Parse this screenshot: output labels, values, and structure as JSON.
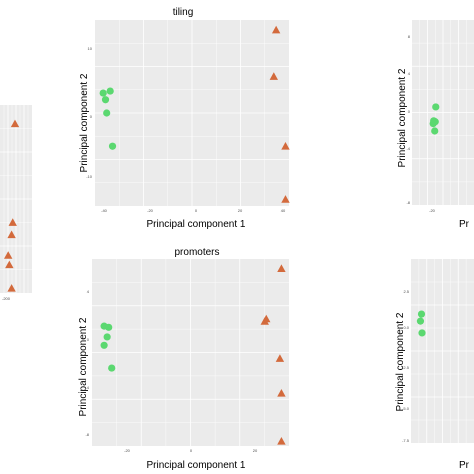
{
  "chart_data": [
    {
      "id": "tiling",
      "type": "scatter",
      "title": "tiling",
      "xlabel": "Principal component 1",
      "ylabel": "Principal component 2",
      "x_ticks": [
        "-40",
        "-20",
        "0",
        "20",
        "40"
      ],
      "y_ticks": [
        "10",
        "0",
        "-10"
      ],
      "xlim": [
        -41.5,
        41.5
      ],
      "ylim": [
        -13.5,
        14.5
      ],
      "grid": true,
      "series": [
        {
          "shape": "circle",
          "color": "#5BD870",
          "points": [
            [
              -38,
              3.5
            ],
            [
              -35,
              3.8
            ],
            [
              -37,
              2.5
            ],
            [
              -36.5,
              0.5
            ],
            [
              -34,
              -4.5
            ]
          ]
        },
        {
          "shape": "triangle",
          "color": "#D36A3C",
          "points": [
            [
              36,
              13
            ],
            [
              35,
              6
            ],
            [
              40,
              -4.5
            ],
            [
              40,
              -12.5
            ]
          ]
        }
      ]
    },
    {
      "id": "promoters",
      "type": "scatter",
      "title": "promoters",
      "xlabel": "Principal component 1",
      "ylabel": "Principal component 2",
      "x_ticks": [
        "-20",
        "0",
        "20"
      ],
      "y_ticks": [
        "4",
        "0",
        "-4",
        "-8"
      ],
      "xlim": [
        -32,
        33
      ],
      "ylim": [
        -8.8,
        6.8
      ],
      "grid": true,
      "series": [
        {
          "shape": "circle",
          "color": "#5BD870",
          "points": [
            [
              -28,
              1.2
            ],
            [
              -26.5,
              1.1
            ],
            [
              -27,
              0.3
            ],
            [
              -28,
              -0.4
            ],
            [
              -25.5,
              -2.3
            ]
          ]
        },
        {
          "shape": "triangle",
          "color": "#D36A3C",
          "points": [
            [
              30.5,
              6
            ],
            [
              25.5,
              1.8
            ],
            [
              25,
              1.6
            ],
            [
              30,
              -1.5
            ],
            [
              30.5,
              -4.4
            ],
            [
              30.5,
              -8.4
            ]
          ]
        }
      ]
    },
    {
      "id": "left-partial",
      "type": "scatter",
      "title": "",
      "xlabel": "",
      "ylabel": "",
      "x_ticks": [
        "-200"
      ],
      "y_ticks": [],
      "xlim": [
        -220,
        20
      ],
      "ylim": [
        -10,
        10
      ],
      "grid": true,
      "series": [
        {
          "shape": "triangle",
          "color": "#D36A3C",
          "points": [
            [
              5,
              8
            ],
            [
              3,
              -2.5
            ],
            [
              2,
              -3.8
            ],
            [
              -1,
              -6
            ],
            [
              0,
              -7
            ],
            [
              2,
              -9.5
            ]
          ]
        }
      ]
    },
    {
      "id": "right-top-partial",
      "type": "scatter",
      "title": "",
      "xlabel": "Pr",
      "ylabel": "Principal component 2",
      "x_ticks": [
        "-20"
      ],
      "y_ticks": [
        "8",
        "4",
        "0",
        "-4",
        "-8"
      ],
      "xlim": [
        -40,
        20
      ],
      "ylim": [
        -9,
        11
      ],
      "grid": true,
      "series": [
        {
          "shape": "circle",
          "color": "#5BD870",
          "points": [
            [
              -17,
              1.6
            ],
            [
              -19,
              0.1
            ],
            [
              -17.5,
              0.0
            ],
            [
              -19.5,
              -0.2
            ],
            [
              -18,
              -1.0
            ]
          ]
        }
      ]
    },
    {
      "id": "right-bottom-partial",
      "type": "scatter",
      "title": "",
      "xlabel": "Pr",
      "ylabel": "Principal component 2",
      "x_ticks": [],
      "y_ticks": [
        "2.5",
        "0.0",
        "-2.5",
        "-5.0",
        "-7.5"
      ],
      "xlim": [
        -40,
        20
      ],
      "ylim": [
        -7.7,
        4
      ],
      "grid": true,
      "series": [
        {
          "shape": "circle",
          "color": "#5BD870",
          "points": [
            [
              -30,
              0.5
            ],
            [
              -31,
              0.05
            ],
            [
              -29.5,
              -0.7
            ]
          ]
        }
      ]
    }
  ]
}
